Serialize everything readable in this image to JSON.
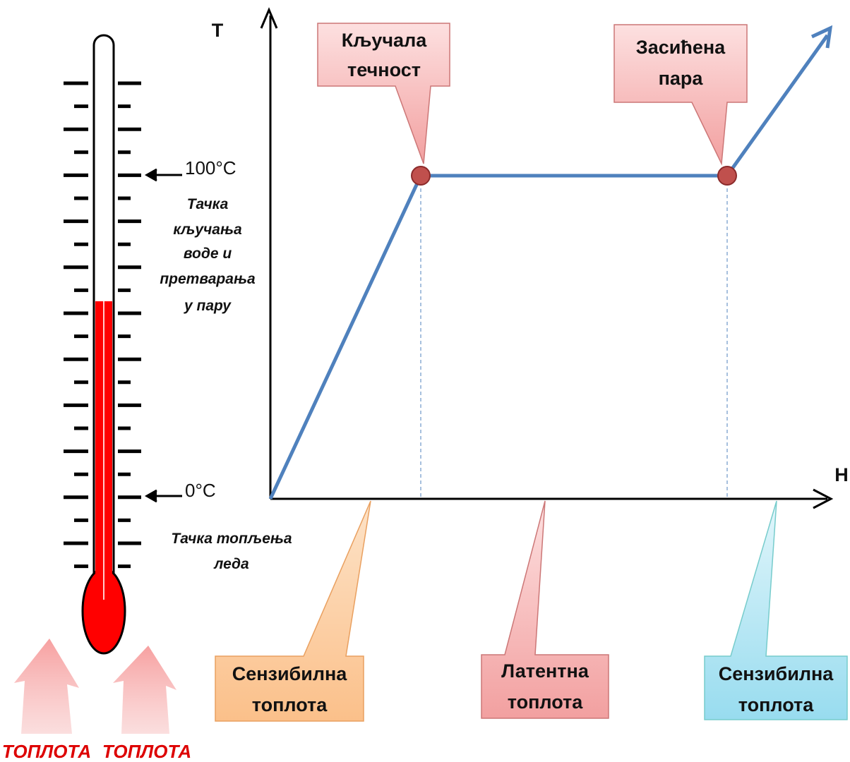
{
  "axes": {
    "y_label": "T",
    "x_label": "H"
  },
  "callouts": {
    "boiling_liquid": [
      "Кључала",
      "течност"
    ],
    "saturated_vapor": [
      "Засићена",
      "пара"
    ]
  },
  "thermometer": {
    "boiling_mark": "100°C",
    "boiling_note": [
      "Тачка",
      "кључања",
      "воде и",
      "претварања",
      "у пару"
    ],
    "melting_mark": "0°C",
    "melting_note": [
      "Тачка топљења",
      "леда"
    ]
  },
  "regions": [
    {
      "label": [
        "Сензибилна",
        "топлота"
      ]
    },
    {
      "label": [
        "Латентна",
        "топлота"
      ]
    },
    {
      "label": [
        "Сензибилна",
        "топлота"
      ]
    }
  ],
  "heat_labels": [
    "ТОПЛОТА",
    "ТОПЛОТА"
  ]
}
